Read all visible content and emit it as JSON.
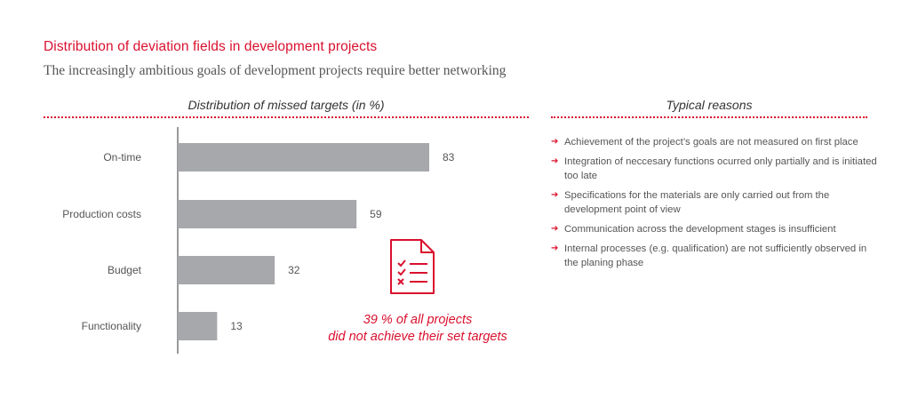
{
  "header": {
    "title": "Distribution of deviation fields in development projects",
    "subtitle": "The increasingly ambitious goals of development projects require better networking"
  },
  "chart_section": {
    "heading": "Distribution of missed targets (in %)"
  },
  "reasons_section": {
    "heading": "Typical reasons",
    "items": [
      "Achievement of the project’s goals are not measured on first place",
      "Integration of neccesary functions ocurred only partially and is initiated too late",
      "Specifications for the materials are only carried out from the development point of view",
      "Communication across the development stages is insufficient",
      "Internal processes (e.g. qualification) are not sufficiently observed in the planing phase"
    ]
  },
  "callout": {
    "line1": "39 % of all projects",
    "line2": "did not achieve their set targets"
  },
  "icons": {
    "doc": "checklist-document-icon",
    "bullet": "arrow-right-icon"
  },
  "colors": {
    "accent": "#d9102e",
    "bar": "#a6a8ab",
    "text": "#555555"
  },
  "chart_data": {
    "type": "bar",
    "orientation": "horizontal",
    "title": "Distribution of missed targets (in %)",
    "categories": [
      "On-time",
      "Production costs",
      "Budget",
      "Functionality"
    ],
    "values": [
      83,
      59,
      32,
      13
    ],
    "xlim": [
      0,
      100
    ],
    "xlabel": "",
    "ylabel": ""
  }
}
